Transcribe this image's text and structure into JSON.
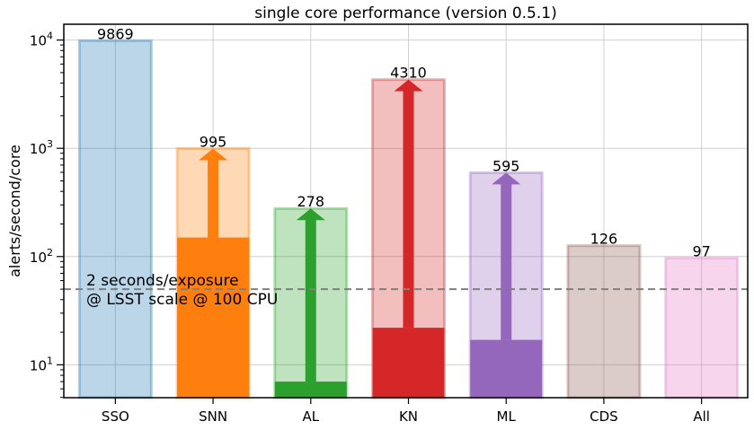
{
  "chart_data": {
    "type": "bar",
    "title": "single core performance (version 0.5.1)",
    "xlabel": "",
    "ylabel": "alerts/second/core",
    "yscale": "log",
    "ylim": [
      5,
      14000
    ],
    "y_ticks": [
      {
        "value": 10,
        "base": "10",
        "exp": "1"
      },
      {
        "value": 100,
        "base": "10",
        "exp": "2"
      },
      {
        "value": 1000,
        "base": "10",
        "exp": "3"
      },
      {
        "value": 10000,
        "base": "10",
        "exp": "4"
      }
    ],
    "grid": true,
    "categories": [
      "SSO",
      "SNN",
      "AL",
      "KN",
      "ML",
      "CDS",
      "All"
    ],
    "values": [
      9869,
      995,
      278,
      4310,
      595,
      126,
      97
    ],
    "value_labels": [
      "9869",
      "995",
      "278",
      "4310",
      "595",
      "126",
      "97"
    ],
    "lower_values": [
      null,
      150,
      7,
      22,
      17,
      null,
      null
    ],
    "colors": [
      "#1f77b4",
      "#ff7f0e",
      "#2ca02c",
      "#d62728",
      "#9467bd",
      "#8c564b",
      "#e377c2"
    ],
    "reference_line": {
      "value": 50,
      "style": "dashed",
      "color": "#808080",
      "label_line1": "2 seconds/exposure",
      "label_line2": "@ LSST scale @ 100 CPU"
    }
  }
}
